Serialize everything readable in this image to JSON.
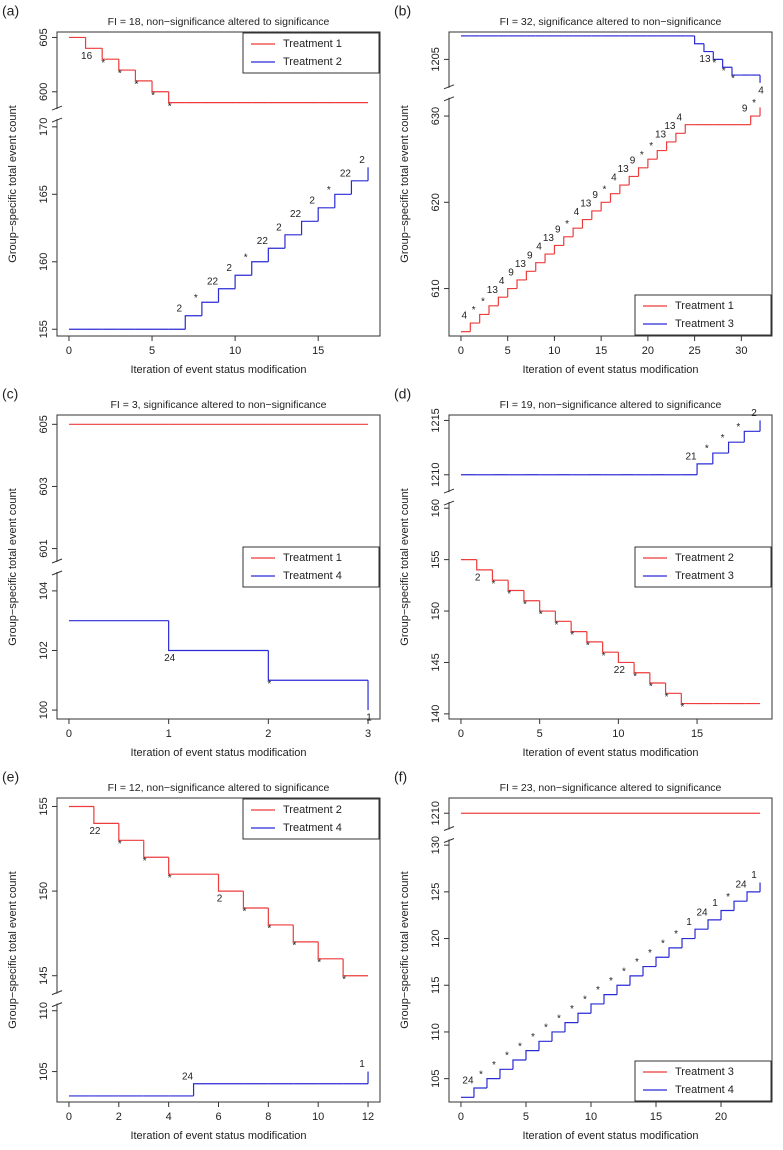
{
  "chart_data": [
    {
      "type": "step",
      "panel": "(a)",
      "title": "FI = 18, non−significance altered to significance",
      "xlabel": "Iteration of event status modification",
      "ylabel": "Group−specific total event count",
      "x": [
        0,
        1,
        2,
        3,
        4,
        5,
        6,
        7,
        8,
        9,
        10,
        11,
        12,
        13,
        14,
        15,
        16,
        17,
        18
      ],
      "xlim": [
        0,
        18
      ],
      "xticks": [
        0,
        5,
        10,
        15
      ],
      "segments": [
        {
          "ylim": [
            598.5,
            605.5
          ],
          "yticks": [
            600,
            605
          ]
        },
        {
          "ylim": [
            154.5,
            170.5
          ],
          "yticks": [
            155,
            160,
            165,
            170
          ]
        }
      ],
      "legend": "topright",
      "series": [
        {
          "name": "Treatment 1",
          "color": "#ee3b3b",
          "segment": 0,
          "values": [
            605,
            604,
            603,
            602,
            601,
            600,
            599,
            599,
            599,
            599,
            599,
            599,
            599,
            599,
            599,
            599,
            599,
            599,
            599
          ],
          "labels": [
            null,
            "16",
            "*",
            "*",
            "*",
            "*",
            "*",
            null,
            null,
            null,
            null,
            null,
            null,
            null,
            null,
            null,
            null,
            null,
            null
          ]
        },
        {
          "name": "Treatment 2",
          "color": "#2b2bd6",
          "segment": 1,
          "values": [
            155,
            155,
            155,
            155,
            155,
            155,
            155,
            156,
            157,
            158,
            159,
            160,
            161,
            162,
            163,
            164,
            165,
            166,
            167
          ],
          "labels": [
            null,
            null,
            null,
            null,
            null,
            null,
            null,
            "2",
            "*",
            "22",
            "2",
            "*",
            "22",
            "2",
            "22",
            "2",
            "*",
            "22",
            "2"
          ]
        }
      ]
    },
    {
      "type": "step",
      "panel": "(b)",
      "title": "FI = 32, significance altered to non−significance",
      "xlabel": "Iteration of event status modification",
      "ylabel": "Group−specific total event count",
      "x": [
        0,
        1,
        2,
        3,
        4,
        5,
        6,
        7,
        8,
        9,
        10,
        11,
        12,
        13,
        14,
        15,
        16,
        17,
        18,
        19,
        20,
        21,
        22,
        23,
        24,
        25,
        26,
        27,
        28,
        29,
        30,
        31,
        32
      ],
      "xlim": [
        0,
        32
      ],
      "xticks": [
        0,
        5,
        10,
        15,
        20,
        25,
        30
      ],
      "segments": [
        {
          "ylim": [
            1201.5,
            1208.5
          ],
          "yticks": [
            1205
          ]
        },
        {
          "ylim": [
            604.5,
            632
          ],
          "yticks": [
            610,
            620,
            630
          ]
        }
      ],
      "legend": "bottomright",
      "series": [
        {
          "name": "Treatment 1",
          "color": "#ee3b3b",
          "segment": 1,
          "values": [
            605,
            606,
            607,
            608,
            609,
            610,
            611,
            612,
            613,
            614,
            615,
            616,
            617,
            618,
            619,
            620,
            621,
            622,
            623,
            624,
            625,
            626,
            627,
            628,
            629,
            629,
            629,
            629,
            629,
            629,
            629,
            630,
            631
          ],
          "labels": [
            null,
            "4",
            "*",
            "*",
            "13",
            "4",
            "9",
            "13",
            "9",
            "4",
            "13",
            "9",
            "*",
            "4",
            "13",
            "9",
            "*",
            "4",
            "13",
            "9",
            "*",
            "*",
            "13",
            "13",
            "4",
            null,
            null,
            null,
            null,
            null,
            null,
            "9",
            "*"
          ]
        },
        {
          "name": "Treatment 3",
          "color": "#2b2bd6",
          "segment": 0,
          "values": [
            1208,
            1208,
            1208,
            1208,
            1208,
            1208,
            1208,
            1208,
            1208,
            1208,
            1208,
            1208,
            1208,
            1208,
            1208,
            1208,
            1208,
            1208,
            1208,
            1208,
            1208,
            1208,
            1208,
            1208,
            1208,
            1207,
            1206,
            1205,
            1204,
            1203,
            1203,
            1203,
            1202
          ],
          "labels": [
            null,
            null,
            null,
            null,
            null,
            null,
            null,
            null,
            null,
            null,
            null,
            null,
            null,
            null,
            null,
            null,
            null,
            null,
            null,
            null,
            null,
            null,
            null,
            null,
            null,
            null,
            "13",
            "*",
            "*",
            "*",
            null,
            null,
            "4"
          ]
        }
      ]
    },
    {
      "type": "step",
      "panel": "(c)",
      "title": "FI = 3, significance altered to non−significance",
      "xlabel": "Iteration of event status modification",
      "ylabel": "Group−specific total event count",
      "x": [
        0,
        1,
        2,
        3
      ],
      "xlim": [
        0,
        3
      ],
      "xticks": [
        0,
        1,
        2,
        3
      ],
      "segments": [
        {
          "ylim": [
            600.6,
            605.3
          ],
          "yticks": [
            601,
            603,
            605
          ]
        },
        {
          "ylim": [
            99.7,
            104.6
          ],
          "yticks": [
            100,
            102,
            104
          ]
        }
      ],
      "legend": "right",
      "series": [
        {
          "name": "Treatment 1",
          "color": "#ee3b3b",
          "segment": 0,
          "values": [
            605,
            605,
            605,
            605
          ]
        },
        {
          "name": "Treatment 4",
          "color": "#2b2bd6",
          "segment": 1,
          "values": [
            103,
            102,
            101,
            100
          ],
          "labels": [
            null,
            "24",
            "*",
            "1"
          ]
        }
      ]
    },
    {
      "type": "step",
      "panel": "(d)",
      "title": "FI = 19, non−significance altered to significance",
      "xlabel": "Iteration of event status modification",
      "ylabel": "Group−specific total event count",
      "x": [
        0,
        1,
        2,
        3,
        4,
        5,
        6,
        7,
        8,
        9,
        10,
        11,
        12,
        13,
        14,
        15,
        16,
        17,
        18,
        19
      ],
      "xlim": [
        0,
        19
      ],
      "xticks": [
        0,
        5,
        10,
        15
      ],
      "segments": [
        {
          "ylim": [
            1208.5,
            1215.5
          ],
          "yticks": [
            1210,
            1215
          ]
        },
        {
          "ylim": [
            139.5,
            160.5
          ],
          "yticks": [
            140,
            145,
            150,
            155,
            160
          ]
        }
      ],
      "legend": "right",
      "series": [
        {
          "name": "Treatment 2",
          "color": "#ee3b3b",
          "segment": 1,
          "values": [
            155,
            154,
            153,
            152,
            151,
            150,
            149,
            148,
            147,
            146,
            145,
            144,
            143,
            142,
            141,
            141,
            141,
            141,
            141,
            141
          ],
          "labels": [
            null,
            "2",
            "*",
            "*",
            "*",
            "*",
            "*",
            "*",
            "*",
            "*",
            "22",
            "*",
            "*",
            "*",
            "*",
            null,
            null,
            null,
            null,
            null
          ]
        },
        {
          "name": "Treatment 3",
          "color": "#2b2bd6",
          "segment": 0,
          "values": [
            1210,
            1210,
            1210,
            1210,
            1210,
            1210,
            1210,
            1210,
            1210,
            1210,
            1210,
            1210,
            1210,
            1210,
            1210,
            1211,
            1212,
            1213,
            1214,
            1215
          ],
          "labels": [
            null,
            null,
            null,
            null,
            null,
            null,
            null,
            null,
            null,
            null,
            null,
            null,
            null,
            null,
            null,
            "21",
            "*",
            "*",
            "*",
            "2"
          ]
        }
      ]
    },
    {
      "type": "step",
      "panel": "(e)",
      "title": "FI = 12, non−significance altered to significance",
      "xlabel": "Iteration of event status modification",
      "ylabel": "Group−specific total event count",
      "x": [
        0,
        1,
        2,
        3,
        4,
        5,
        6,
        7,
        8,
        9,
        10,
        11,
        12
      ],
      "xlim": [
        0,
        12
      ],
      "xticks": [
        0,
        2,
        4,
        6,
        8,
        10,
        12
      ],
      "segments": [
        {
          "ylim": [
            144,
            155.5
          ],
          "yticks": [
            145,
            150,
            155
          ]
        },
        {
          "ylim": [
            102.5,
            110.5
          ],
          "yticks": [
            105,
            110
          ]
        }
      ],
      "legend": "topright",
      "series": [
        {
          "name": "Treatment 2",
          "color": "#ee3b3b",
          "segment": 0,
          "values": [
            155,
            154,
            153,
            152,
            151,
            151,
            150,
            149,
            148,
            147,
            146,
            145,
            145
          ],
          "labels": [
            null,
            "22",
            "*",
            "*",
            "*",
            null,
            "2",
            "*",
            "*",
            "*",
            "*",
            "*",
            null
          ]
        },
        {
          "name": "Treatment 4",
          "color": "#2b2bd6",
          "segment": 1,
          "values": [
            103,
            103,
            103,
            103,
            103,
            104,
            104,
            104,
            104,
            104,
            104,
            104,
            105
          ],
          "labels": [
            null,
            null,
            null,
            null,
            null,
            "24",
            null,
            null,
            null,
            null,
            null,
            null,
            "1"
          ]
        }
      ]
    },
    {
      "type": "step",
      "panel": "(f)",
      "title": "FI = 23, non−significance altered to significance",
      "xlabel": "Iteration of event status modification",
      "ylabel": "Group−specific total event count",
      "x": [
        0,
        1,
        2,
        3,
        4,
        5,
        6,
        7,
        8,
        9,
        10,
        11,
        12,
        13,
        14,
        15,
        16,
        17,
        18,
        19,
        20,
        21,
        22,
        23
      ],
      "xlim": [
        0,
        23
      ],
      "xticks": [
        0,
        5,
        10,
        15,
        20
      ],
      "segments": [
        {
          "ylim": [
            1209,
            1211
          ],
          "yticks": [
            1210
          ]
        },
        {
          "ylim": [
            102.5,
            130.5
          ],
          "yticks": [
            105,
            110,
            115,
            120,
            125,
            130
          ]
        }
      ],
      "legend": "bottomright",
      "series": [
        {
          "name": "Treatment 3",
          "color": "#ee3b3b",
          "segment": 0,
          "values": [
            1210,
            1210,
            1210,
            1210,
            1210,
            1210,
            1210,
            1210,
            1210,
            1210,
            1210,
            1210,
            1210,
            1210,
            1210,
            1210,
            1210,
            1210,
            1210,
            1210,
            1210,
            1210,
            1210,
            1210
          ]
        },
        {
          "name": "Treatment 4",
          "color": "#2b2bd6",
          "segment": 1,
          "values": [
            103,
            104,
            105,
            106,
            107,
            108,
            109,
            110,
            111,
            112,
            113,
            114,
            115,
            116,
            117,
            118,
            119,
            120,
            121,
            122,
            123,
            124,
            125,
            126
          ],
          "labels": [
            null,
            "24",
            "*",
            "*",
            "*",
            "*",
            "*",
            "*",
            "*",
            "*",
            "*",
            "*",
            "*",
            "*",
            "*",
            "*",
            "*",
            "*",
            "1",
            "24",
            "1",
            "*",
            "24",
            "1"
          ]
        }
      ]
    }
  ]
}
